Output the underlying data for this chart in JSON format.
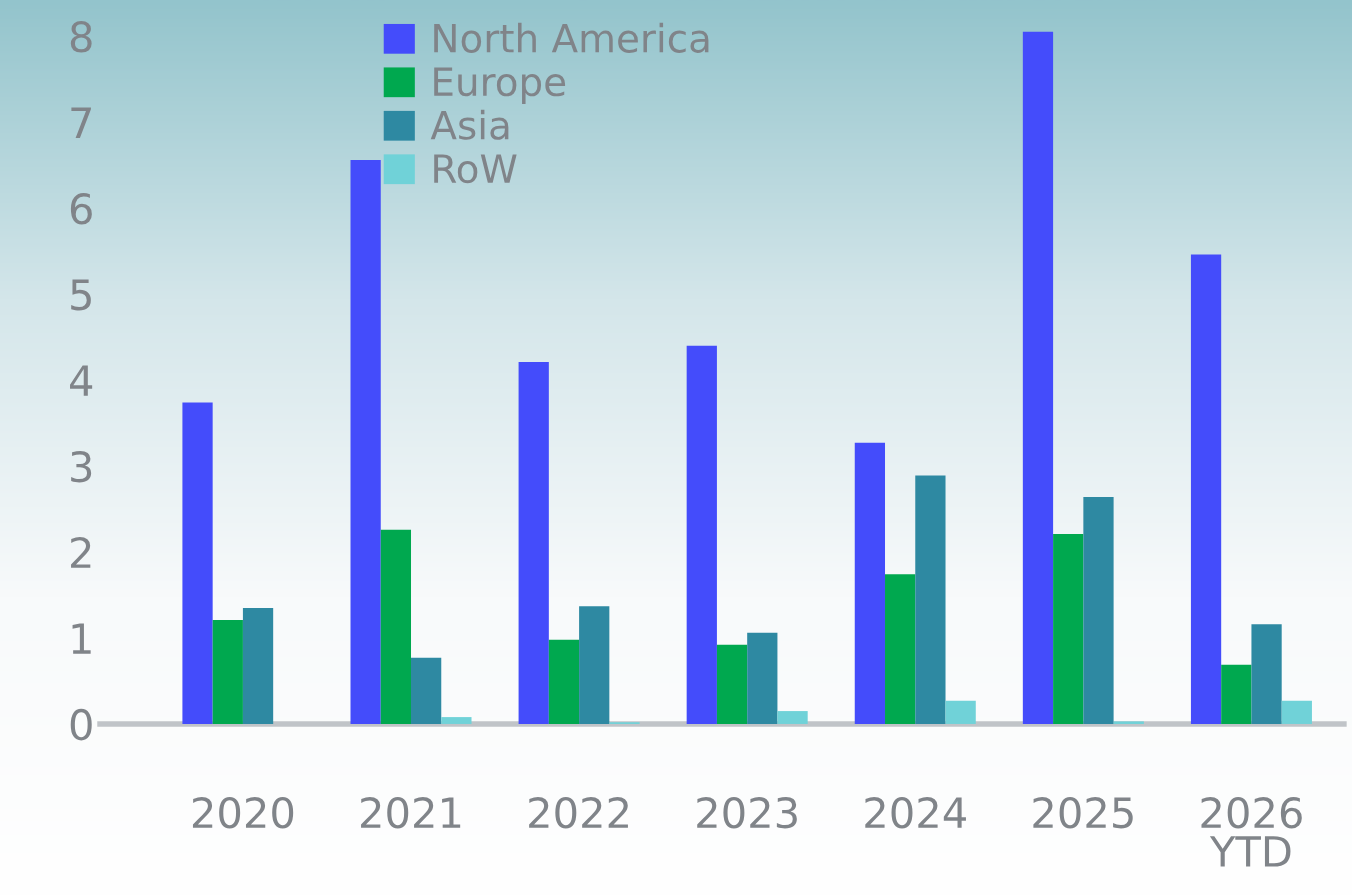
{
  "chart_data": {
    "type": "bar",
    "categories": [
      "2020",
      "2021",
      "2022",
      "2023",
      "2024",
      "2025",
      "2026\nYTD"
    ],
    "series": [
      {
        "name": "North America",
        "color": "#444cfb",
        "values": [
          3.74,
          6.56,
          4.21,
          4.4,
          3.27,
          8.05,
          5.46
        ]
      },
      {
        "name": "Europe",
        "color": "#00a84f",
        "values": [
          1.21,
          2.26,
          0.98,
          0.92,
          1.74,
          2.21,
          0.69
        ]
      },
      {
        "name": "Asia",
        "color": "#2e89a2",
        "values": [
          1.35,
          0.77,
          1.37,
          1.06,
          2.89,
          2.64,
          1.16
        ]
      },
      {
        "name": "RoW",
        "color": "#70d2d8",
        "values": [
          null,
          0.08,
          0.02,
          0.15,
          0.27,
          0.03,
          0.27
        ]
      }
    ],
    "ylim": [
      0,
      8.42
    ],
    "yticks": [
      0,
      1,
      2,
      3,
      4,
      5,
      6,
      7,
      8
    ],
    "grid": false,
    "legend": "top"
  }
}
